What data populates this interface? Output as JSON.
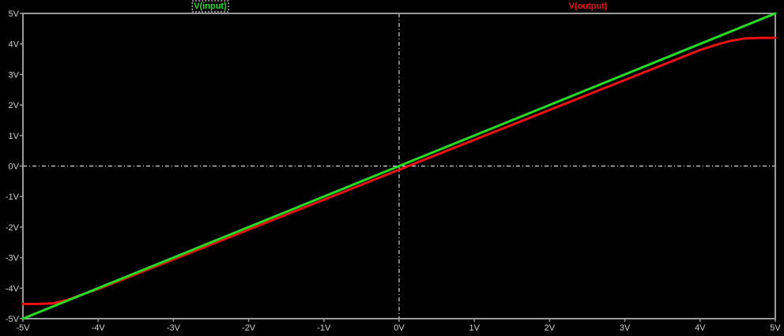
{
  "chart_data": {
    "type": "line",
    "background": "#000000",
    "frame_color": "#9a9a9a",
    "grid": "zero-lines-only",
    "xlim": [
      -5,
      5
    ],
    "ylim": [
      -5,
      5
    ],
    "x_ticks": [
      -5,
      -4,
      -3,
      -2,
      -1,
      0,
      1,
      2,
      3,
      4,
      5
    ],
    "y_ticks": [
      -5,
      -4,
      -3,
      -2,
      -1,
      0,
      1,
      2,
      3,
      4,
      5
    ],
    "x_tick_labels": [
      "-5V",
      "-4V",
      "-3V",
      "-2V",
      "-1V",
      "0V",
      "1V",
      "2V",
      "3V",
      "4V",
      "5V"
    ],
    "y_tick_labels": [
      "-5V",
      "-4V",
      "-3V",
      "-2V",
      "-1V",
      "0V",
      "1V",
      "2V",
      "3V",
      "4V",
      "5V"
    ],
    "legend_position": "top",
    "series": [
      {
        "name": "V(input)",
        "color": "#22dd22",
        "legend_boxed": true,
        "x": [
          -5,
          -4,
          -3,
          -2,
          -1,
          0,
          1,
          2,
          3,
          4,
          5
        ],
        "y": [
          -5,
          -4,
          -3,
          -2,
          -1,
          0,
          1,
          2,
          3,
          4,
          5
        ]
      },
      {
        "name": "V(output)",
        "color": "#ee1111",
        "legend_boxed": false,
        "x": [
          -5,
          -4.8,
          -4.6,
          -4.4,
          -4.2,
          -4.0,
          -3.0,
          -2.0,
          -1.0,
          0,
          1,
          2,
          3,
          4,
          4.2,
          4.4,
          4.6,
          4.8,
          5
        ],
        "y": [
          -4.52,
          -4.52,
          -4.5,
          -4.38,
          -4.2,
          -4.03,
          -3.06,
          -2.08,
          -1.1,
          -0.12,
          0.86,
          1.84,
          2.82,
          3.8,
          3.96,
          4.1,
          4.18,
          4.2,
          4.2
        ]
      }
    ]
  }
}
